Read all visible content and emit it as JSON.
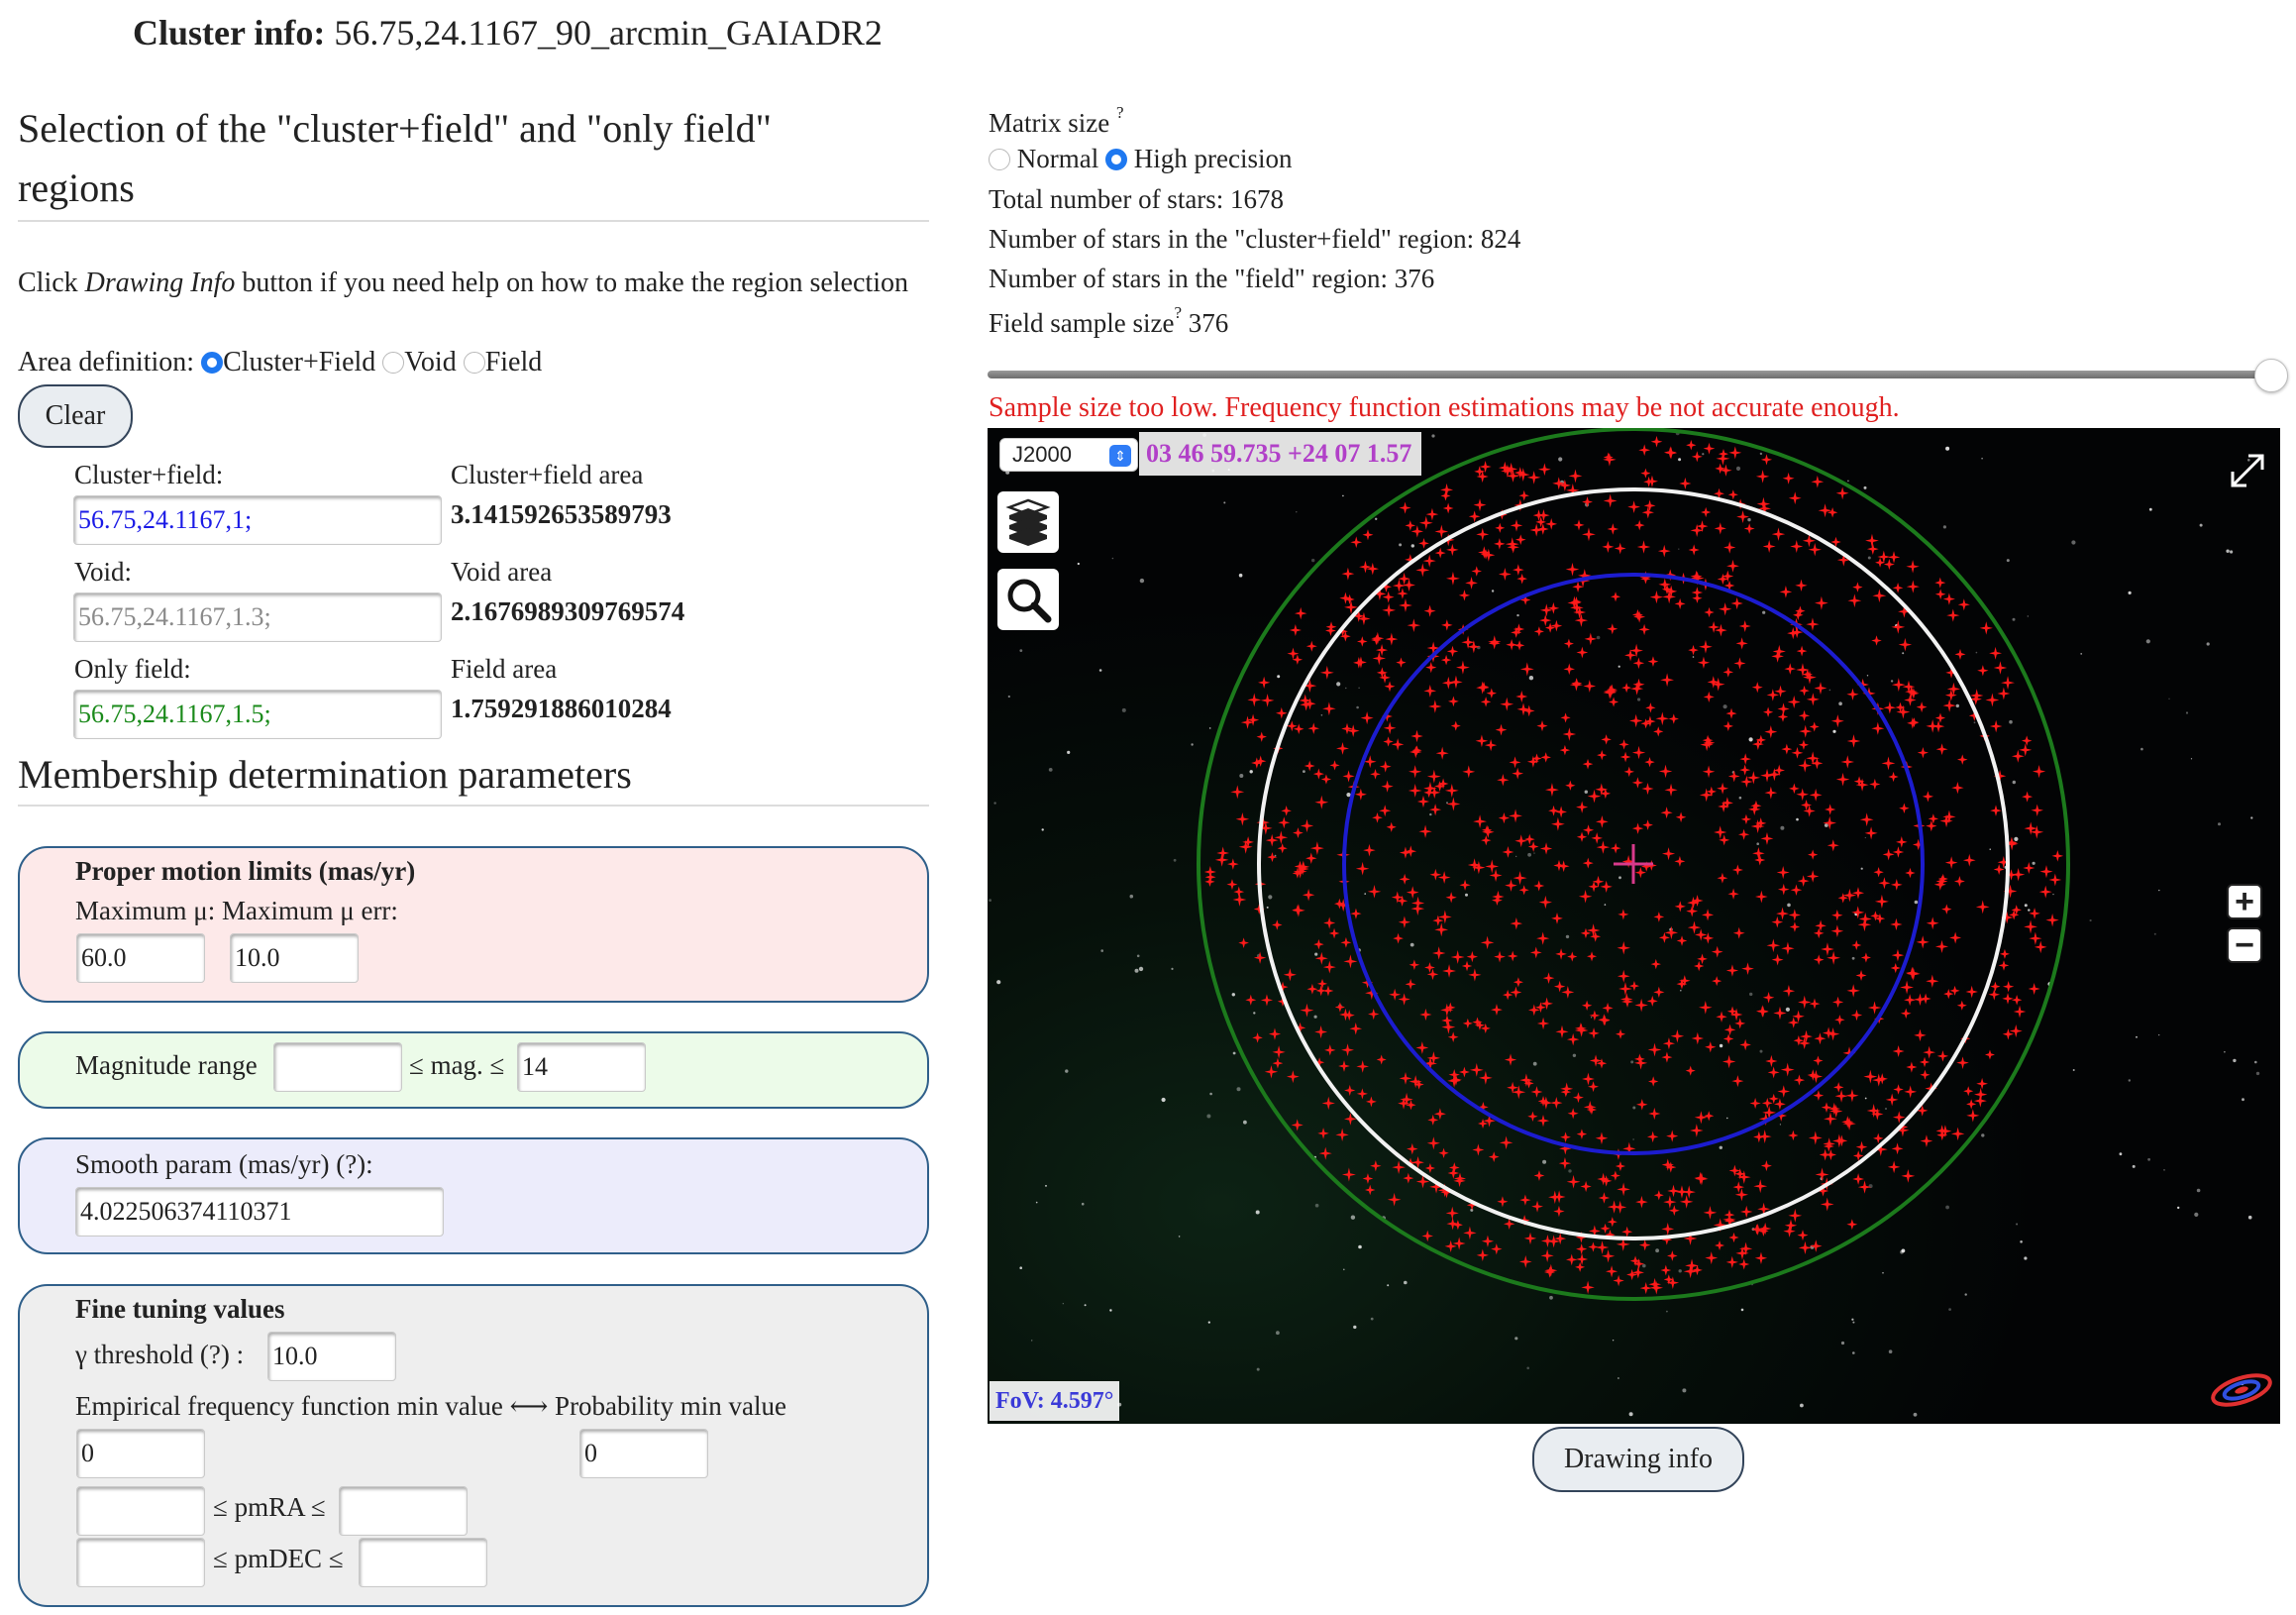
{
  "header": {
    "label": "Cluster info:",
    "value": "56.75,24.1167_90_arcmin_GAIADR2"
  },
  "selection": {
    "title_line1": "Selection of the \"cluster+field\" and \"only field\"",
    "title_line2": "regions",
    "help_prefix": "Click ",
    "help_italic": "Drawing Info",
    "help_suffix": " button if you need help on how to make the region selection",
    "area_definition_label": "Area definition:",
    "area_options": [
      "Cluster+Field",
      "Void",
      "Field"
    ],
    "area_selected": "Cluster+Field",
    "clear_label": "Clear",
    "cluster_field_label": "Cluster+field:",
    "cluster_field_value": "56.75,24.1167,1;",
    "cluster_field_area_label": "Cluster+field area",
    "cluster_field_area": "3.141592653589793",
    "void_label": "Void:",
    "void_placeholder": "56.75,24.1167,1.3;",
    "void_area_label": "Void area",
    "void_area": "2.1676989309769574",
    "only_field_label": "Only field:",
    "only_field_value": "56.75,24.1167,1.5;",
    "field_area_label": "Field area",
    "field_area": "1.759291886010284"
  },
  "membership": {
    "title": "Membership determination parameters",
    "proper_motion": {
      "title": "Proper motion limits (mas/yr)",
      "max_mu_label": "Maximum μ:",
      "max_mu_err_label": "Maximum μ err:",
      "max_mu_value": "60.0",
      "max_mu_err_value": "10.0"
    },
    "magnitude": {
      "label": "Magnitude range",
      "mid_label": "≤ mag. ≤",
      "min_value": "",
      "max_value": "14"
    },
    "smooth": {
      "label": "Smooth param (mas/yr)  (?):",
      "value": "4.022506374110371"
    },
    "fine_tuning": {
      "title": "Fine tuning values",
      "gamma_label": "γ threshold (?) :",
      "gamma_value": "10.0",
      "freq_label": "Empirical frequency function min value ⟷ Probability min value",
      "freq_value": "0",
      "prob_value": "0",
      "pmra_label": "≤ pmRA ≤",
      "pmdec_label": "≤ pmDEC ≤",
      "pmra_min": "",
      "pmra_max": "",
      "pmdec_min": "",
      "pmdec_max": ""
    }
  },
  "stats": {
    "matrix_size_label": "Matrix size",
    "help_mark": "?",
    "matrix_options": [
      "Normal",
      "High precision"
    ],
    "matrix_selected": "High precision",
    "total_stars": "Total number of stars: 1678",
    "cluster_field_stars": "Number of stars in the \"cluster+field\" region: 824",
    "field_stars": "Number of stars in the \"field\" region: 376",
    "sample_size_label": "Field sample size",
    "sample_size_value": "376",
    "sample_slider_fraction": 1.0,
    "warning": "Sample size too low. Frequency function estimations may be not accurate enough."
  },
  "viewer": {
    "frame": "J2000",
    "coords": "03 46 59.735 +24 07 1.57",
    "fov": "FoV: 4.597°",
    "drawing_info_label": "Drawing info",
    "region_colors": {
      "field": "#1c7a1c",
      "void": "#ffffff",
      "cluster": "#1c1ccf",
      "stars": "#ff1a1a"
    }
  },
  "colors": {
    "accent": "#1e78f0",
    "warning": "#e02020",
    "coords": "#b140c8",
    "cluster_text": "#1a1ae6",
    "field_text": "#1a8a1a"
  }
}
